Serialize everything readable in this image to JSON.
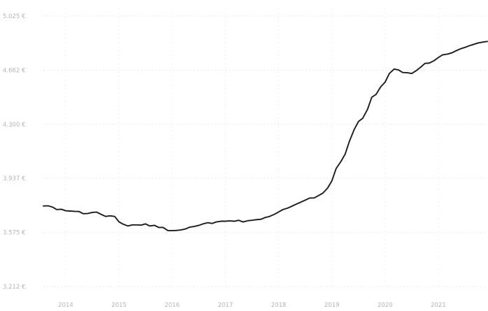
{
  "chart_data": {
    "type": "line",
    "title": "",
    "xlabel": "",
    "ylabel": "",
    "grid": true,
    "legend": "none",
    "xlim": [
      2013.58,
      2021.92
    ],
    "ylim": [
      3212,
      5025
    ],
    "x_ticks": [
      "2014",
      "2015",
      "2016",
      "2017",
      "2018",
      "2019",
      "2020",
      "2021"
    ],
    "y_ticks": [
      {
        "value": 5025,
        "label": "5.025 €"
      },
      {
        "value": 4662,
        "label": "4.662 €"
      },
      {
        "value": 4300,
        "label": "4.300 €"
      },
      {
        "value": 3937,
        "label": "3.937 €"
      },
      {
        "value": 3575,
        "label": "3.575 €"
      },
      {
        "value": 3212,
        "label": "3.212 €"
      }
    ],
    "colors": {
      "line": "#1c1c1c",
      "grid": "#e9e9e9",
      "tick_text": "#b5b5b5"
    },
    "series": [
      {
        "x": [
          2013.58,
          2013.67,
          2013.75,
          2013.83,
          2013.92,
          2014.0,
          2014.08,
          2014.17,
          2014.25,
          2014.33,
          2014.42,
          2014.5,
          2014.58,
          2014.67,
          2014.75,
          2014.83,
          2014.92,
          2015.0,
          2015.08,
          2015.17,
          2015.25,
          2015.33,
          2015.42,
          2015.5,
          2015.58,
          2015.67,
          2015.75,
          2015.83,
          2015.92,
          2016.0,
          2016.08,
          2016.17,
          2016.25,
          2016.33,
          2016.42,
          2016.5,
          2016.58,
          2016.67,
          2016.75,
          2016.83,
          2016.92,
          2017.0,
          2017.08,
          2017.17,
          2017.25,
          2017.33,
          2017.42,
          2017.5,
          2017.58,
          2017.67,
          2017.75,
          2017.83,
          2017.92,
          2018.0,
          2018.08,
          2018.17,
          2018.25,
          2018.33,
          2018.42,
          2018.5,
          2018.58,
          2018.67,
          2018.75,
          2018.83,
          2018.92,
          2019.0,
          2019.08,
          2019.17,
          2019.25,
          2019.33,
          2019.42,
          2019.5,
          2019.58,
          2019.67,
          2019.75,
          2019.83,
          2019.92,
          2020.0,
          2020.08,
          2020.17,
          2020.25,
          2020.33,
          2020.42,
          2020.5,
          2020.58,
          2020.67,
          2020.75,
          2020.83,
          2020.92,
          2021.0,
          2021.08,
          2021.17,
          2021.25,
          2021.33,
          2021.42,
          2021.5,
          2021.58,
          2021.67,
          2021.75,
          2021.83,
          2021.92
        ],
        "values": [
          3752,
          3753,
          3745,
          3728,
          3730,
          3720,
          3718,
          3716,
          3715,
          3700,
          3702,
          3709,
          3711,
          3695,
          3682,
          3686,
          3682,
          3646,
          3630,
          3618,
          3625,
          3625,
          3624,
          3632,
          3618,
          3622,
          3608,
          3608,
          3587,
          3587,
          3588,
          3592,
          3598,
          3610,
          3615,
          3622,
          3632,
          3640,
          3635,
          3645,
          3650,
          3650,
          3652,
          3650,
          3656,
          3645,
          3653,
          3656,
          3660,
          3663,
          3675,
          3682,
          3696,
          3712,
          3728,
          3738,
          3751,
          3764,
          3778,
          3791,
          3805,
          3806,
          3822,
          3838,
          3872,
          3920,
          4003,
          4050,
          4100,
          4186,
          4265,
          4318,
          4340,
          4400,
          4481,
          4500,
          4552,
          4582,
          4640,
          4670,
          4664,
          4647,
          4645,
          4640,
          4658,
          4683,
          4708,
          4710,
          4726,
          4747,
          4765,
          4770,
          4778,
          4792,
          4806,
          4815,
          4826,
          4836,
          4845,
          4850,
          4855
        ]
      }
    ]
  }
}
